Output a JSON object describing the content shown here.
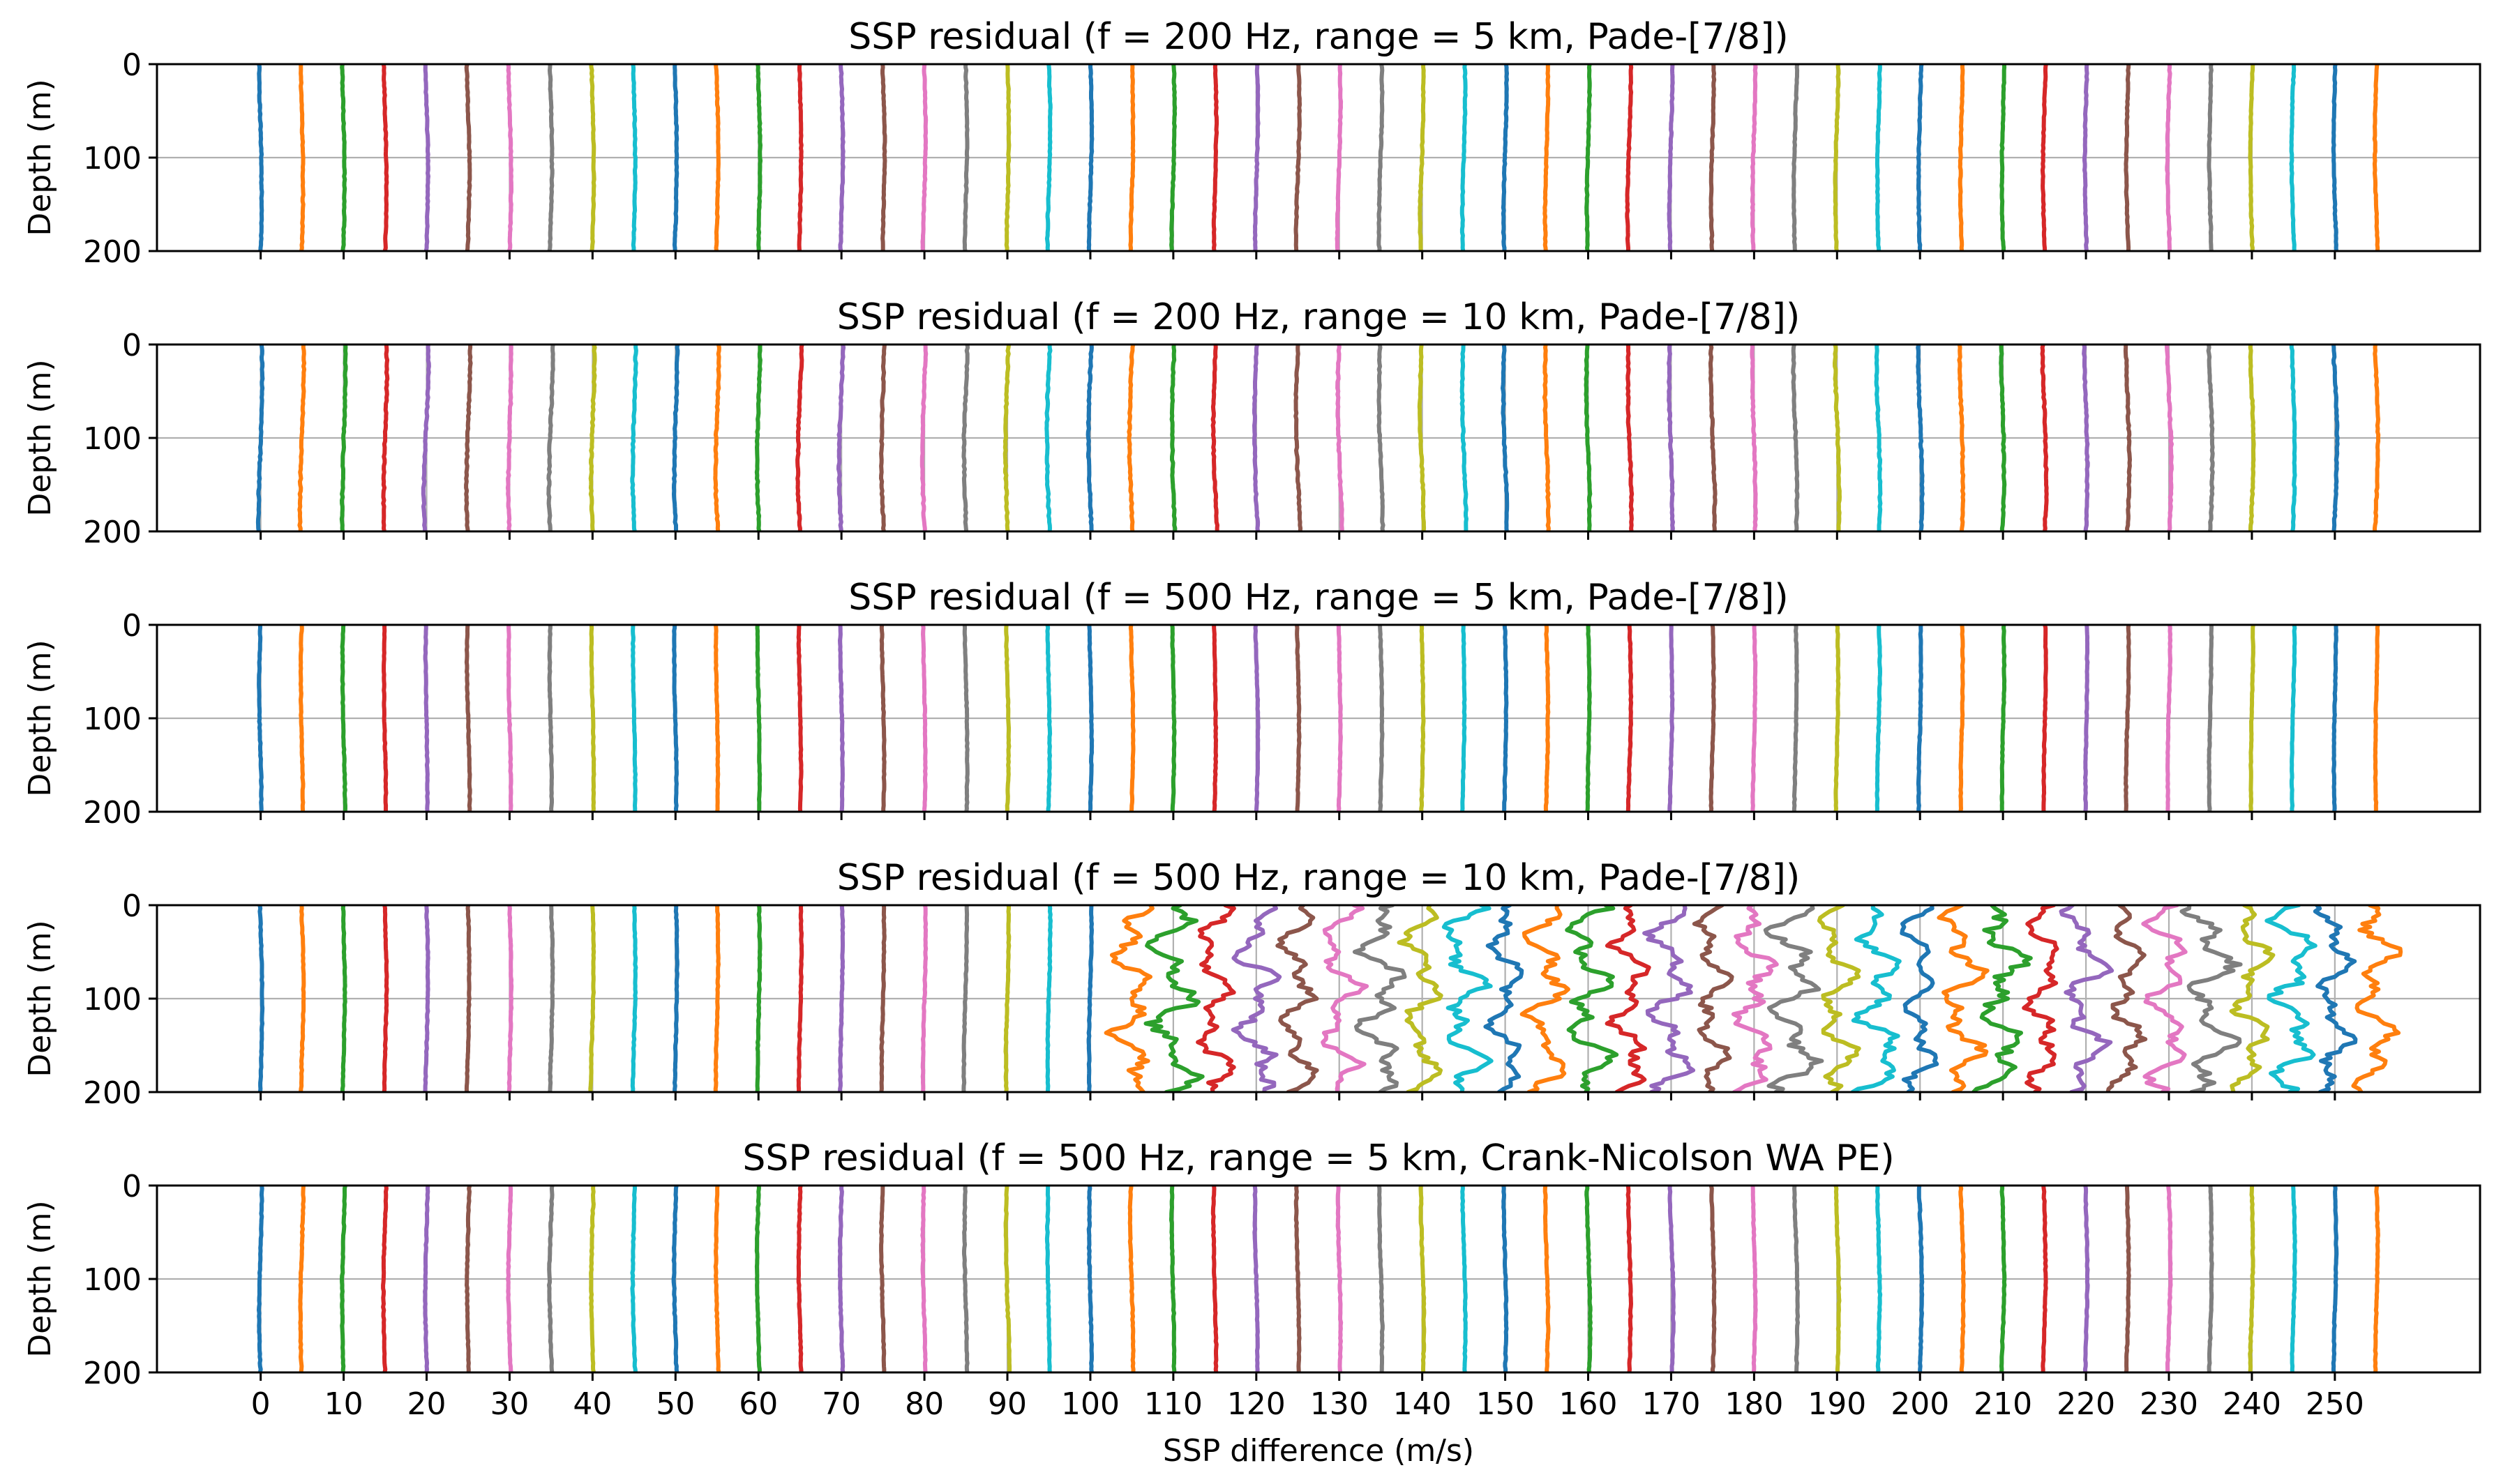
{
  "figure": {
    "xlabel": "SSP difference (m/s)",
    "ylabel": "Depth (m)"
  },
  "chart_data": [
    {
      "type": "line",
      "title": "SSP residual  (f = 200 Hz, range = 5 km, Pade-[7/8])",
      "xlabel": "",
      "ylabel": "Depth (m)",
      "xlim": [
        -12.5,
        267.5
      ],
      "ylim": [
        200,
        0
      ],
      "yticks": [
        0,
        100,
        200
      ],
      "grid": true,
      "series_count": 52,
      "series_offset_step": 5,
      "residual_amplitude_ms": 0.6,
      "wiggle": "low",
      "note": "52 vertical residual profiles, each offset by 5 m/s (0 to 255)"
    },
    {
      "type": "line",
      "title": "SSP residual  (f = 200 Hz, range = 10 km, Pade-[7/8])",
      "xlabel": "",
      "ylabel": "Depth (m)",
      "xlim": [
        -12.5,
        267.5
      ],
      "ylim": [
        200,
        0
      ],
      "yticks": [
        0,
        100,
        200
      ],
      "grid": true,
      "series_count": 52,
      "series_offset_step": 5,
      "residual_amplitude_ms": 0.8,
      "wiggle": "low"
    },
    {
      "type": "line",
      "title": "SSP residual  (f = 500 Hz, range = 5 km, Pade-[7/8])",
      "xlabel": "",
      "ylabel": "Depth (m)",
      "xlim": [
        -12.5,
        267.5
      ],
      "ylim": [
        200,
        0
      ],
      "yticks": [
        0,
        100,
        200
      ],
      "grid": true,
      "series_count": 52,
      "series_offset_step": 5,
      "residual_amplitude_ms": 0.5,
      "wiggle": "low"
    },
    {
      "type": "line",
      "title": "SSP residual  (f = 500 Hz, range = 10 km, Pade-[7/8])",
      "xlabel": "",
      "ylabel": "Depth (m)",
      "xlim": [
        -12.5,
        267.5
      ],
      "ylim": [
        200,
        0
      ],
      "yticks": [
        0,
        100,
        200
      ],
      "grid": true,
      "series_count": 52,
      "series_offset_step": 5,
      "residual_amplitude_ms": 3.0,
      "wiggle": "high",
      "note": "profiles 0-105 nearly straight; profiles from ~105 upward oscillate strongly (up to ~±3 m/s)"
    },
    {
      "type": "line",
      "title": "SSP residual  (f = 500 Hz, range = 5 km, Crank-Nicolson WA PE)",
      "xlabel": "SSP difference (m/s)",
      "ylabel": "Depth (m)",
      "xlim": [
        -12.5,
        267.5
      ],
      "ylim": [
        200,
        0
      ],
      "yticks": [
        0,
        100,
        200
      ],
      "grid": true,
      "xticks": [
        0,
        10,
        20,
        30,
        40,
        50,
        60,
        70,
        80,
        90,
        100,
        110,
        120,
        130,
        140,
        150,
        160,
        170,
        180,
        190,
        200,
        210,
        220,
        230,
        240,
        250
      ],
      "series_count": 52,
      "series_offset_step": 5,
      "residual_amplitude_ms": 0.6,
      "wiggle": "low"
    }
  ],
  "palette": [
    "#1f77b4",
    "#ff7f0e",
    "#2ca02c",
    "#d62728",
    "#9467bd",
    "#8c564b",
    "#e377c2",
    "#7f7f7f",
    "#bcbd22",
    "#17becf"
  ]
}
